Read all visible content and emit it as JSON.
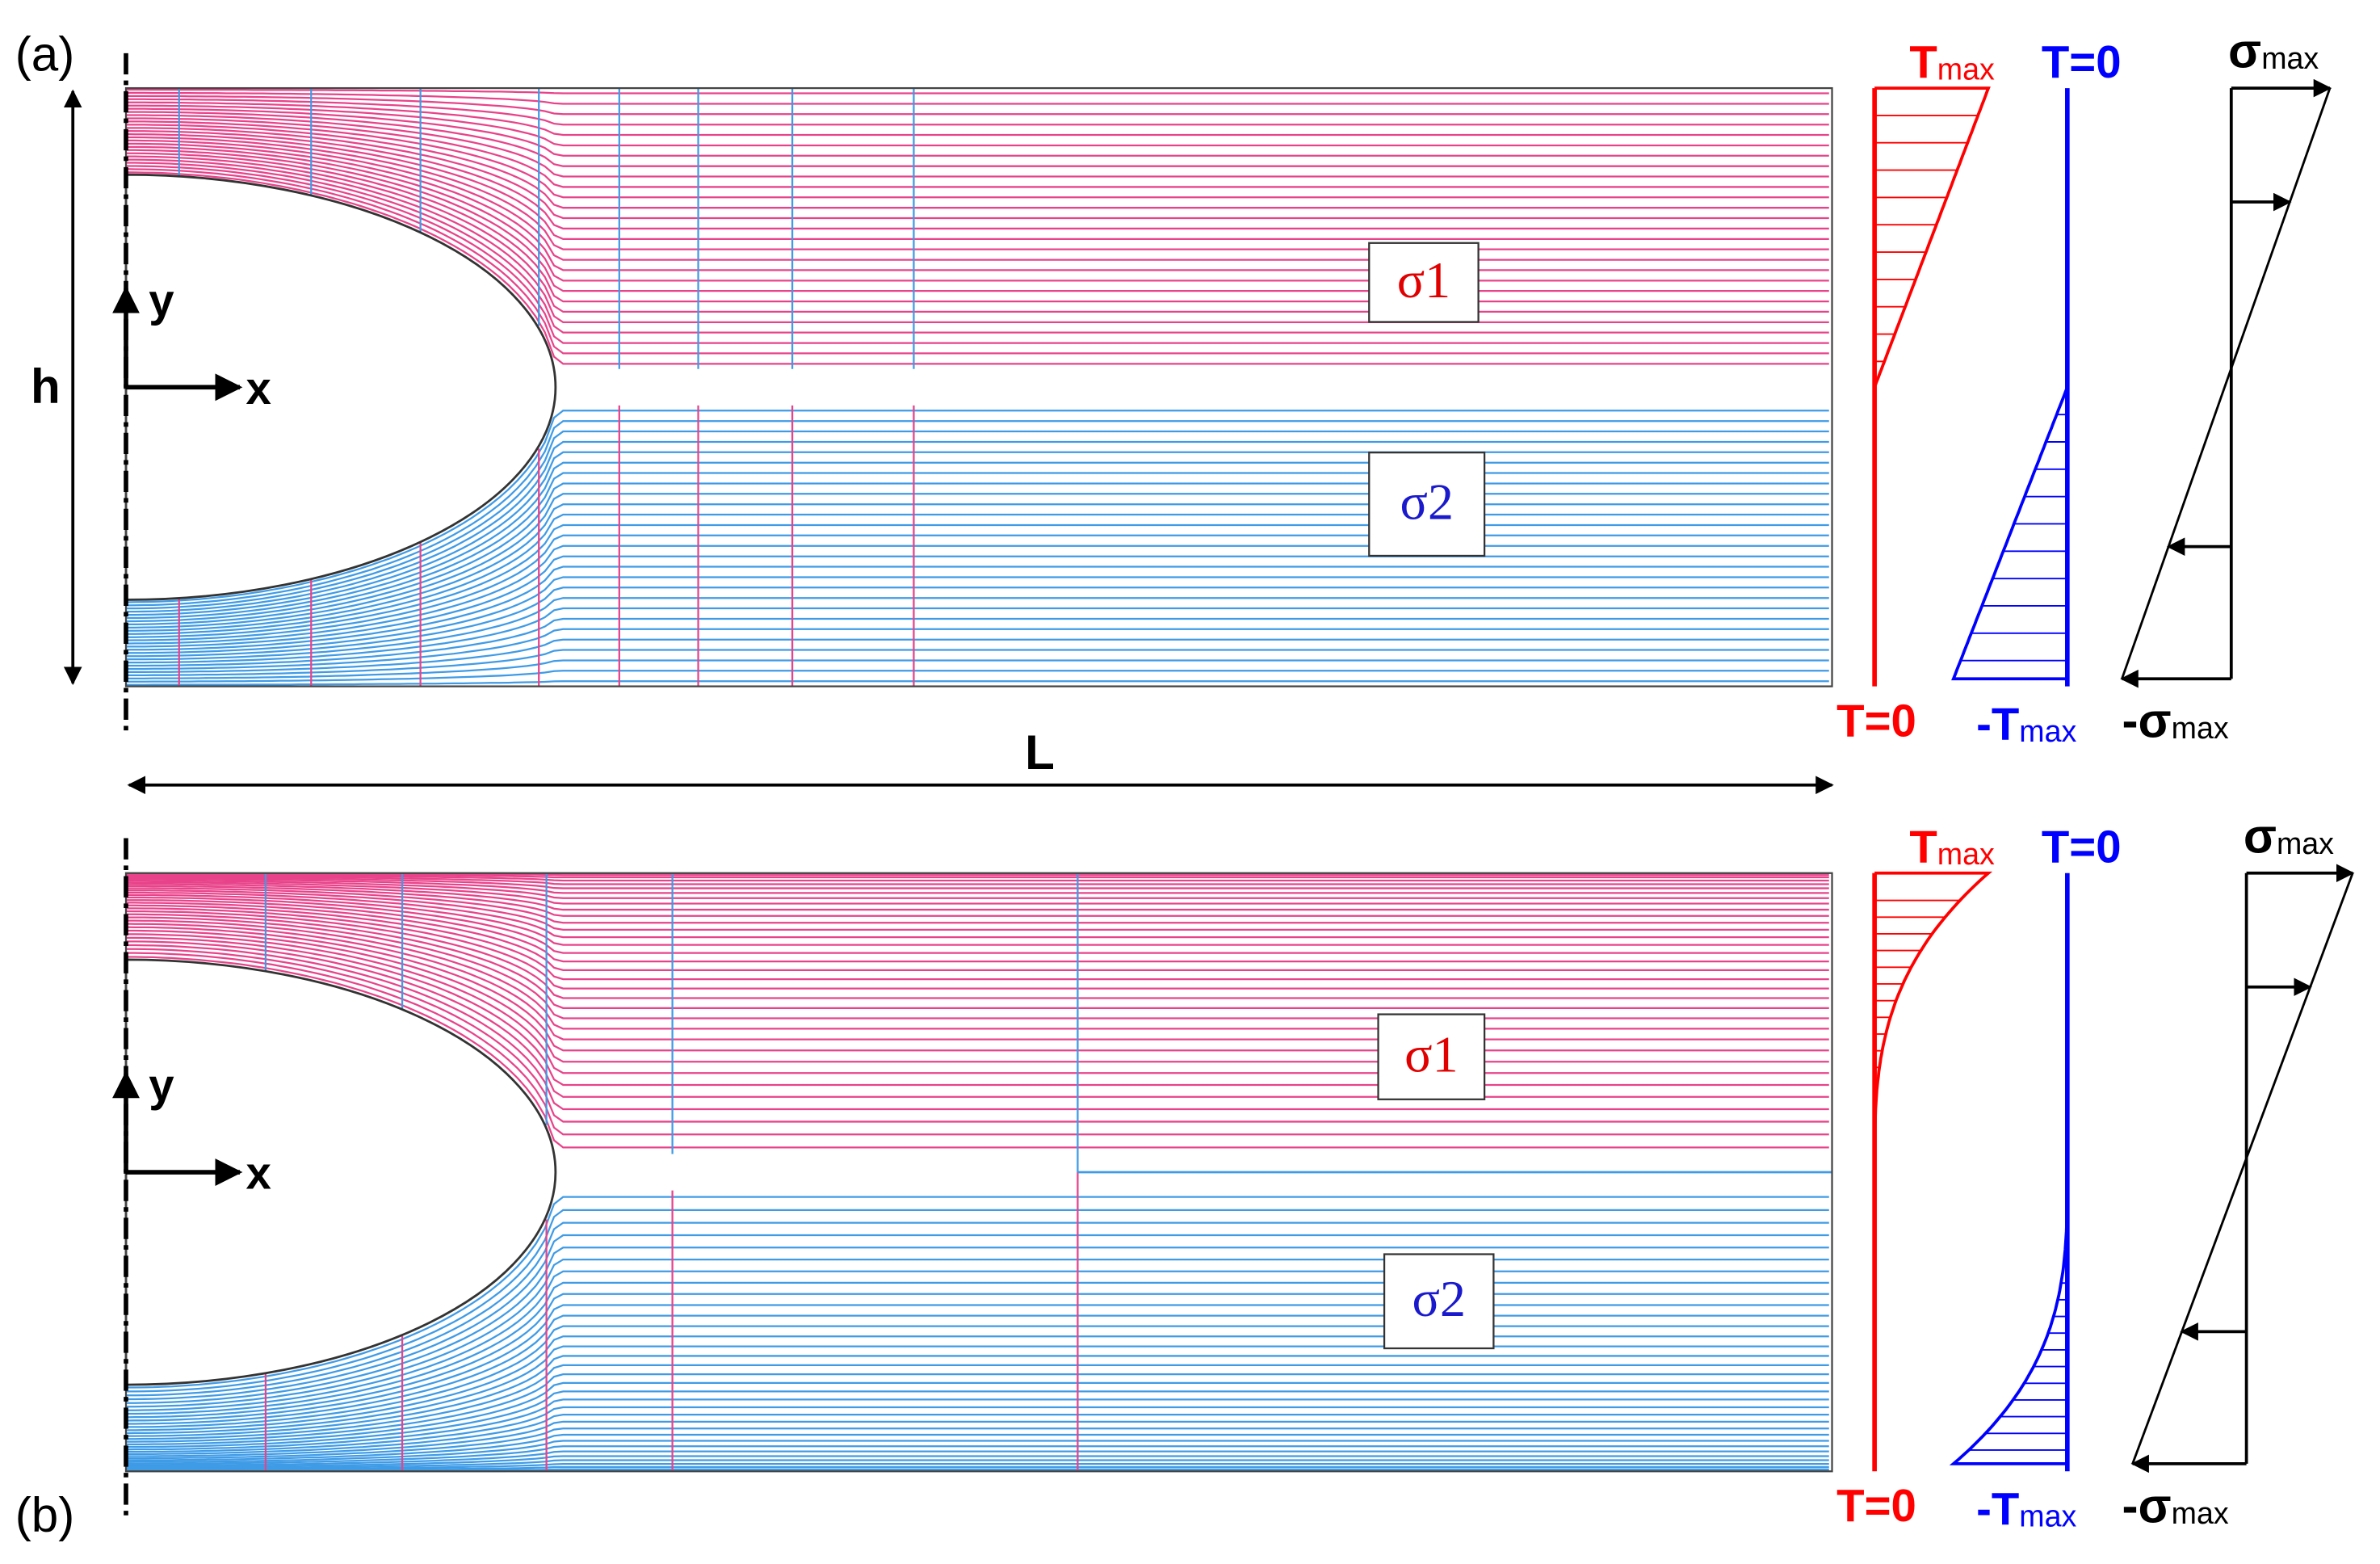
{
  "panels": [
    {
      "label": "(a)",
      "axes": {
        "y": "y",
        "x": "x"
      },
      "regions": {
        "upper": "σ1",
        "lower": "σ2"
      },
      "temperature_upper": {
        "top": {
          "symbol": "T",
          "sub": "max"
        },
        "bottom": "T=0"
      },
      "temperature_lower": {
        "top": "T=0",
        "bottom": {
          "symbol": "-T",
          "sub": "max"
        }
      },
      "stress": {
        "top": {
          "symbol": "σ",
          "sub": "max"
        },
        "bottom": {
          "symbol": "-σ",
          "sub": "max"
        }
      }
    },
    {
      "label": "(b)",
      "axes": {
        "y": "y",
        "x": "x"
      },
      "regions": {
        "upper": "σ1",
        "lower": "σ2"
      },
      "temperature_upper": {
        "top": {
          "symbol": "T",
          "sub": "max"
        },
        "bottom": "T=0"
      },
      "temperature_lower": {
        "top": "T=0",
        "bottom": {
          "symbol": "-T",
          "sub": "max"
        }
      },
      "stress": {
        "top": {
          "symbol": "σ",
          "sub": "max"
        },
        "bottom": {
          "symbol": "-σ",
          "sub": "max"
        }
      }
    }
  ],
  "dimensions": {
    "height": "h",
    "length": "L"
  }
}
